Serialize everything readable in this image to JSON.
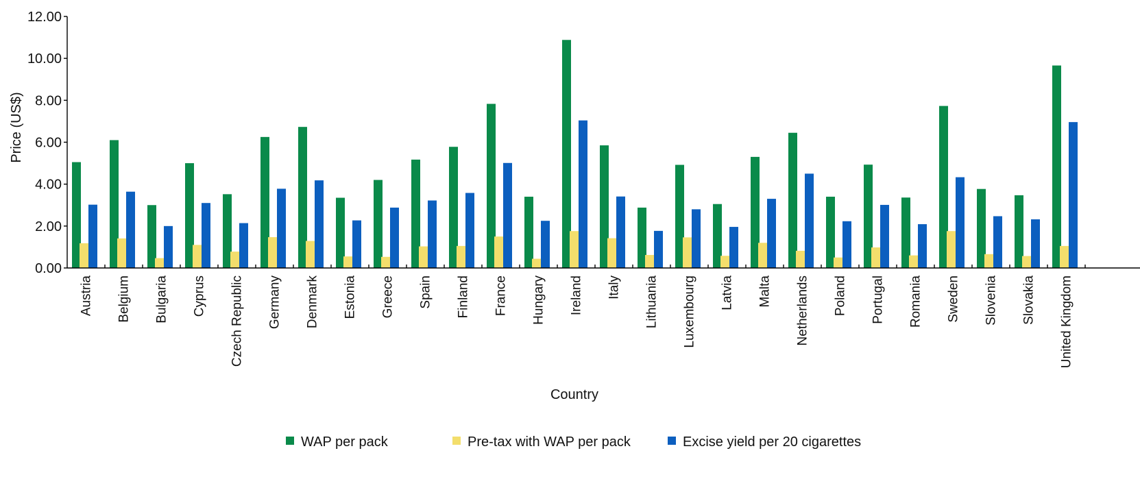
{
  "chart_data": {
    "type": "bar",
    "title": "",
    "xlabel": "Country",
    "ylabel": "Price (US$)",
    "ylim": [
      0,
      12
    ],
    "y_ticks": [
      "0.00",
      "2.00",
      "4.00",
      "6.00",
      "8.00",
      "10.00",
      "12.00"
    ],
    "grid": false,
    "legend_position": "bottom",
    "categories": [
      "Austria",
      "Belgium",
      "Bulgaria",
      "Cyprus",
      "Czech Republic",
      "Germany",
      "Denmark",
      "Estonia",
      "Greece",
      "Spain",
      "Finland",
      "France",
      "Hungary",
      "Ireland",
      "Italy",
      "Lithuania",
      "Luxembourg",
      "Latvia",
      "Malta",
      "Netherlands",
      "Poland",
      "Portugal",
      "Romania",
      "Sweden",
      "Slovenia",
      "Slovakia",
      "United Kingdom"
    ],
    "series": [
      {
        "name": "WAP per pack",
        "color": "#0a8a4a",
        "values": [
          5.05,
          6.1,
          3.0,
          5.0,
          3.52,
          6.25,
          6.73,
          3.35,
          4.2,
          5.17,
          5.78,
          7.83,
          3.4,
          10.88,
          5.85,
          2.88,
          4.92,
          3.05,
          5.3,
          6.45,
          3.4,
          4.93,
          3.36,
          7.73,
          3.77,
          3.47,
          9.66
        ]
      },
      {
        "name": "Pre-tax with WAP per pack",
        "color": "#f3de6c",
        "values": [
          1.18,
          1.41,
          0.47,
          1.1,
          0.78,
          1.47,
          1.29,
          0.55,
          0.53,
          1.03,
          1.05,
          1.5,
          0.44,
          1.76,
          1.42,
          0.62,
          1.46,
          0.58,
          1.2,
          0.82,
          0.5,
          0.98,
          0.6,
          1.76,
          0.66,
          0.57,
          1.05
        ]
      },
      {
        "name": "Excise yield per 20 cigarettes",
        "color": "#0c5fbf",
        "values": [
          3.02,
          3.64,
          2.0,
          3.1,
          2.14,
          3.78,
          4.18,
          2.27,
          2.88,
          3.22,
          3.58,
          5.01,
          2.25,
          7.04,
          3.41,
          1.77,
          2.8,
          1.96,
          3.3,
          4.5,
          2.23,
          3.01,
          2.09,
          4.33,
          2.47,
          2.32,
          6.96
        ]
      }
    ]
  }
}
